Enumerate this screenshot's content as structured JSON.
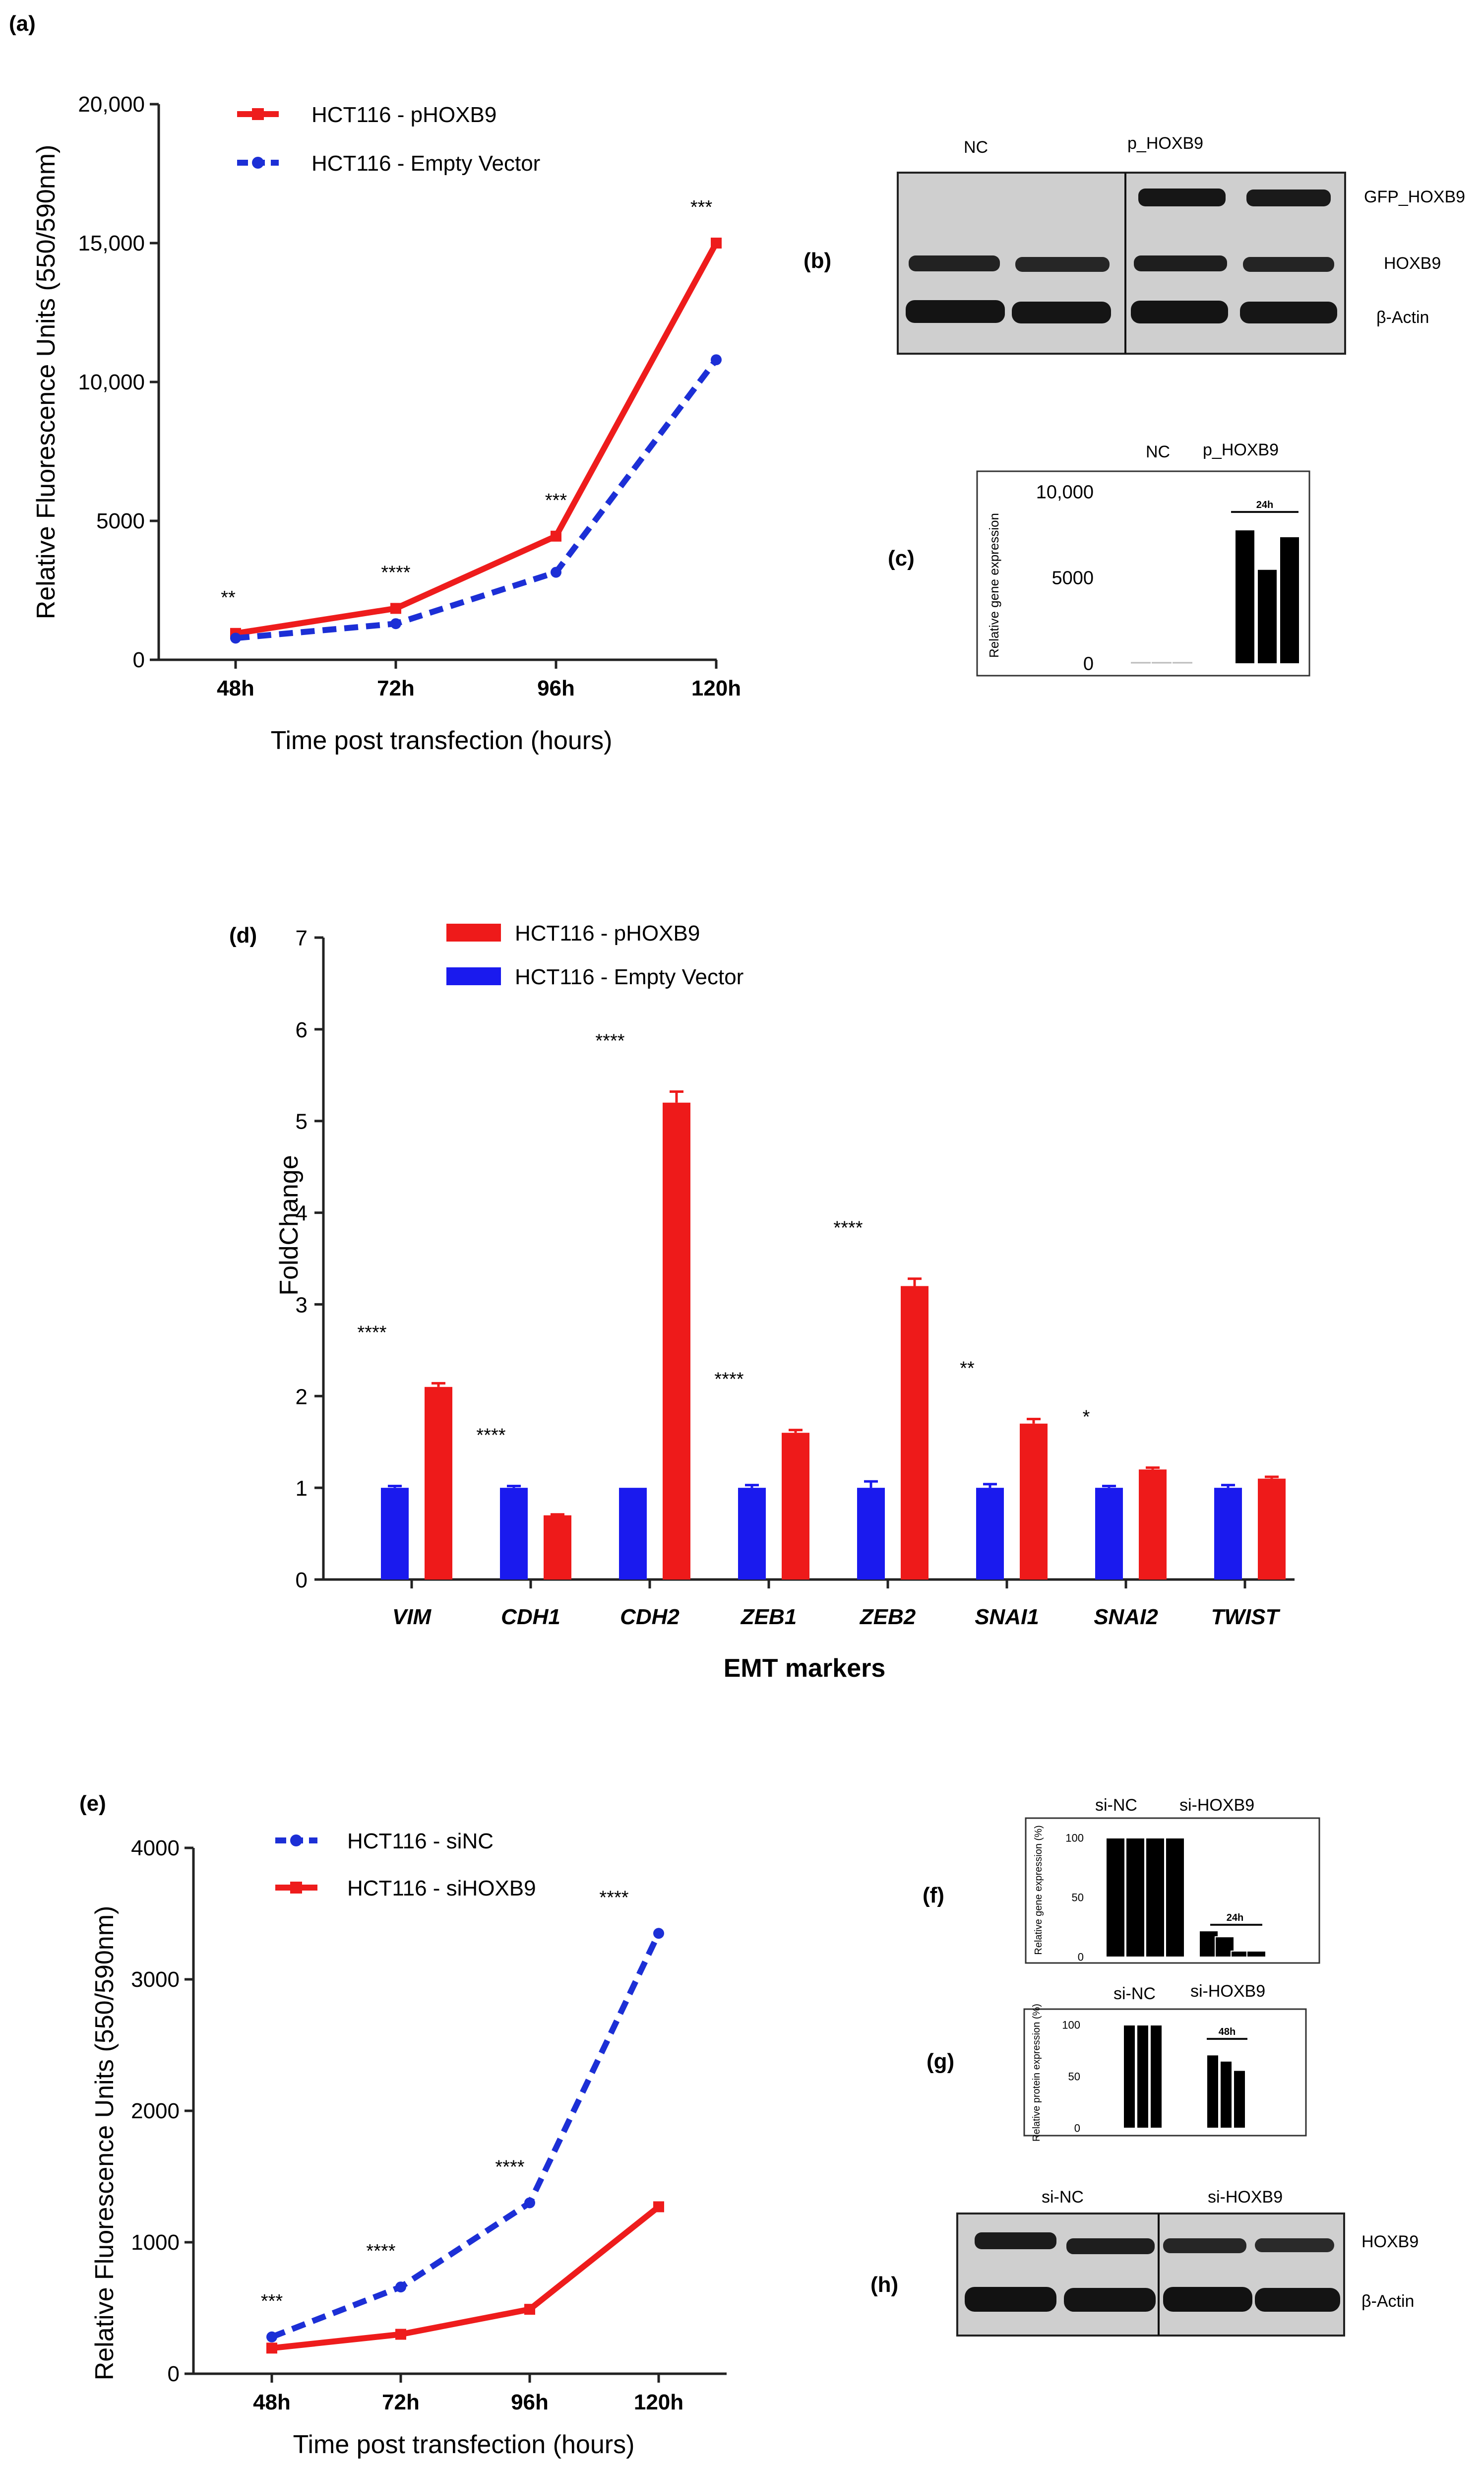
{
  "chart_data": [
    {
      "id": "a",
      "type": "line",
      "panel_label": "(a)",
      "ylabel": "Relative Fluorescence Units (550/590nm)",
      "xlabel": "Time post transfection (hours)",
      "categories": [
        "48h",
        "72h",
        "96h",
        "120h"
      ],
      "ylim": [
        0,
        20000
      ],
      "yticks": [
        {
          "value": 0,
          "label": "0"
        },
        {
          "value": 5000,
          "label": "5000"
        },
        {
          "value": 10000,
          "label": "10,000"
        },
        {
          "value": 15000,
          "label": "15,000"
        },
        {
          "value": 20000,
          "label": "20,000"
        }
      ],
      "series": [
        {
          "name": "HCT116 - pHOXB9",
          "color": "#ee1c1c",
          "style": "solid",
          "values": [
            950,
            1850,
            4450,
            15000
          ]
        },
        {
          "name": "HCT116 - Empty Vector",
          "color": "#1c2fd6",
          "style": "dashed",
          "values": [
            780,
            1300,
            3150,
            10800
          ]
        }
      ],
      "significance": [
        "**",
        "****",
        "***",
        "***"
      ],
      "legend_position": "top-left"
    },
    {
      "id": "c",
      "type": "bar",
      "panel_label": "(c)",
      "ylabel": "Relative gene expression",
      "group_labels": [
        "NC",
        "p_HOXB9"
      ],
      "time_label": "24h",
      "ylim": [
        0,
        10000
      ],
      "yticks": [
        {
          "value": 0,
          "label": "0"
        },
        {
          "value": 5000,
          "label": "5000"
        },
        {
          "value": 10000,
          "label": "10,000"
        }
      ],
      "values": [
        0,
        0,
        0,
        7800,
        5500,
        7400
      ]
    },
    {
      "id": "d",
      "type": "bar",
      "panel_label": "(d)",
      "ylabel": "FoldChange",
      "xlabel": "EMT markers",
      "categories": [
        "VIM",
        "CDH1",
        "CDH2",
        "ZEB1",
        "ZEB2",
        "SNAI1",
        "SNAI2",
        "TWIST"
      ],
      "ylim": [
        0,
        7
      ],
      "yticks": [
        {
          "value": 0,
          "label": "0"
        },
        {
          "value": 1,
          "label": "1"
        },
        {
          "value": 2,
          "label": "2"
        },
        {
          "value": 3,
          "label": "3"
        },
        {
          "value": 4,
          "label": "4"
        },
        {
          "value": 5,
          "label": "5"
        },
        {
          "value": 6,
          "label": "6"
        },
        {
          "value": 7,
          "label": "7"
        }
      ],
      "series": [
        {
          "name": "HCT116 - Empty Vector",
          "color": "#1a1aee",
          "values": [
            1.0,
            1.0,
            1.0,
            1.0,
            1.0,
            1.0,
            1.0,
            1.0
          ],
          "errors": [
            0.02,
            0.02,
            0.0,
            0.03,
            0.07,
            0.04,
            0.02,
            0.03
          ]
        },
        {
          "name": "HCT116 - pHOXB9",
          "color": "#ee1a1a",
          "values": [
            2.1,
            0.7,
            5.2,
            1.6,
            3.2,
            1.7,
            1.2,
            1.1
          ],
          "errors": [
            0.04,
            0.01,
            0.12,
            0.03,
            0.08,
            0.05,
            0.02,
            0.02
          ]
        }
      ],
      "significance": [
        "****",
        "****",
        "****",
        "****",
        "****",
        "**",
        "*",
        ""
      ],
      "legend_position": "top-left"
    },
    {
      "id": "e",
      "type": "line",
      "panel_label": "(e)",
      "ylabel": "Relative Fluorescence Units (550/590nm)",
      "xlabel": "Time post transfection (hours)",
      "categories": [
        "48h",
        "72h",
        "96h",
        "120h"
      ],
      "ylim": [
        0,
        4000
      ],
      "yticks": [
        {
          "value": 0,
          "label": "0"
        },
        {
          "value": 1000,
          "label": "1000"
        },
        {
          "value": 2000,
          "label": "2000"
        },
        {
          "value": 3000,
          "label": "3000"
        },
        {
          "value": 4000,
          "label": "4000"
        }
      ],
      "series": [
        {
          "name": "HCT116 - siNC",
          "color": "#1c2fd6",
          "style": "dashed",
          "values": [
            280,
            660,
            1300,
            3350
          ]
        },
        {
          "name": "HCT116 - siHOXB9",
          "color": "#ee1c1c",
          "style": "solid",
          "values": [
            195,
            300,
            490,
            1270
          ]
        }
      ],
      "significance": [
        "***",
        "****",
        "****",
        "****"
      ],
      "legend_position": "top-left"
    },
    {
      "id": "f",
      "type": "bar",
      "panel_label": "(f)",
      "ylabel": "Relative gene expression (%)",
      "group_labels": [
        "si-NC",
        "si-HOXB9"
      ],
      "time_label": "24h",
      "ylim": [
        0,
        100
      ],
      "yticks": [
        {
          "value": 0,
          "label": "0"
        },
        {
          "value": 50,
          "label": "50"
        },
        {
          "value": 100,
          "label": "100"
        }
      ],
      "values": [
        100,
        100,
        100,
        100,
        22,
        17,
        5,
        5
      ]
    },
    {
      "id": "g",
      "type": "bar",
      "panel_label": "(g)",
      "ylabel": "Relative protein expression (%)",
      "group_labels": [
        "si-NC",
        "si-HOXB9"
      ],
      "time_label": "48h",
      "ylim": [
        0,
        100
      ],
      "yticks": [
        {
          "value": 0,
          "label": "0"
        },
        {
          "value": 50,
          "label": "50"
        },
        {
          "value": 100,
          "label": "100"
        }
      ],
      "values": [
        100,
        100,
        100,
        71,
        65,
        56
      ]
    }
  ],
  "blot_b": {
    "panel_label": "(b)",
    "group_labels": [
      "NC",
      "p_HOXB9"
    ],
    "band_labels": [
      "GFP_HOXB9",
      "HOXB9",
      "β-Actin"
    ]
  },
  "blot_h": {
    "panel_label": "(h)",
    "group_labels": [
      "si-NC",
      "si-HOXB9"
    ],
    "band_labels": [
      "HOXB9",
      "β-Actin"
    ]
  }
}
